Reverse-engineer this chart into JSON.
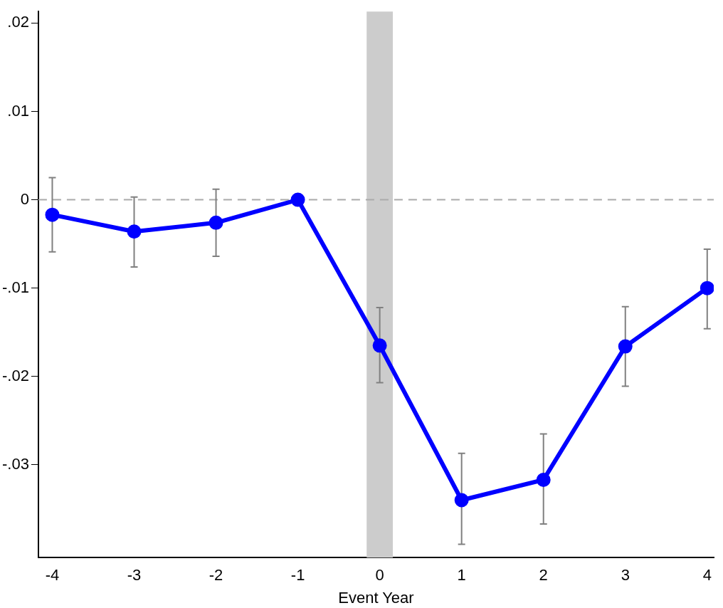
{
  "chart_data": {
    "type": "line",
    "xlabel": "Event Year",
    "x": [
      -4,
      -3,
      -2,
      -1,
      0,
      1,
      2,
      3,
      4
    ],
    "series": [
      {
        "color": "#0000ff",
        "values": [
          -0.0017,
          -0.0036,
          -0.0026,
          0,
          -0.0165,
          -0.034,
          -0.0317,
          -0.0166,
          -0.01
        ],
        "errors": [
          [
            -0.0059,
            0.0025
          ],
          [
            -0.0076,
            0.0003
          ],
          [
            -0.0064,
            0.0012
          ],
          null,
          [
            -0.0207,
            -0.0122
          ],
          [
            -0.039,
            -0.0287
          ],
          [
            -0.0367,
            -0.0265
          ],
          [
            -0.0211,
            -0.0121
          ],
          [
            -0.0146,
            -0.0056
          ]
        ]
      }
    ],
    "xlim": [
      -4.17,
      4.08
    ],
    "xticks": [
      -4,
      -3,
      -2,
      -1,
      0,
      1,
      2,
      3,
      4
    ],
    "ylim": [
      -0.0405,
      0.0213
    ],
    "yticks": [
      {
        "value": 0.02,
        "label": ".02"
      },
      {
        "value": 0.01,
        "label": ".01"
      },
      0,
      {
        "value": -0.01,
        "label": "-.01"
      },
      {
        "value": -0.02,
        "label": "-.02"
      },
      {
        "value": -0.03,
        "label": "-.03"
      }
    ],
    "ref_lines": [
      {
        "axis": "y",
        "value": 0,
        "color": "#aaaaaa",
        "line_style": "dashed"
      }
    ],
    "bands": [
      {
        "axis": "x",
        "from": -0.16,
        "to": 0.16,
        "color": "#cccccc"
      }
    ],
    "grid": false,
    "legend": false,
    "marker": "circle",
    "line_style": "solid"
  }
}
